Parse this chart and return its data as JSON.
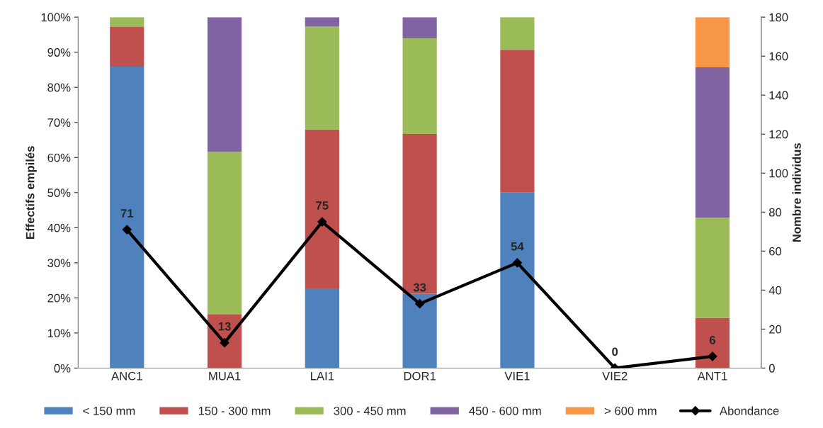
{
  "chart_data": {
    "type": "bar",
    "stacked": true,
    "categories": [
      "ANC1",
      "MUA1",
      "LAI1",
      "DOR1",
      "VIE1",
      "VIE2",
      "ANT1"
    ],
    "series": [
      {
        "name": "< 150 mm",
        "color": "#4f81bd",
        "values": [
          85.9,
          0,
          22.7,
          21.2,
          50,
          null,
          0
        ]
      },
      {
        "name": "150 - 300 mm",
        "color": "#c0504d",
        "values": [
          11.3,
          15.4,
          45.3,
          45.5,
          40.7,
          null,
          14.3
        ]
      },
      {
        "name": "300 - 450 mm",
        "color": "#9bbb59",
        "values": [
          2.8,
          46.2,
          29.3,
          27.3,
          9.3,
          null,
          28.6
        ]
      },
      {
        "name": "450 - 600 mm",
        "color": "#8064a2",
        "values": [
          0,
          38.4,
          2.7,
          6.0,
          0,
          null,
          42.8
        ]
      },
      {
        "name": "> 600 mm",
        "color": "#f79646",
        "values": [
          0,
          0,
          0,
          0,
          0,
          null,
          14.3
        ]
      },
      {
        "name": "Abondance",
        "type": "line",
        "axis": "y2",
        "color": "#000000",
        "marker": "diamond",
        "values": [
          71,
          13,
          75,
          33,
          54,
          0,
          6
        ],
        "value_labels": [
          "71",
          "13",
          "75",
          "33",
          "54",
          "0",
          "6"
        ]
      }
    ],
    "ylabel": "Effectifs empilés",
    "y2label": "Nombre individus",
    "ylim": [
      0,
      100
    ],
    "yticks": [
      {
        "value": 0,
        "label": "0%"
      },
      {
        "value": 10,
        "label": "10%"
      },
      {
        "value": 20,
        "label": "20%"
      },
      {
        "value": 30,
        "label": "30%"
      },
      {
        "value": 40,
        "label": "40%"
      },
      {
        "value": 50,
        "label": "50%"
      },
      {
        "value": 60,
        "label": "60%"
      },
      {
        "value": 70,
        "label": "70%"
      },
      {
        "value": 80,
        "label": "80%"
      },
      {
        "value": 90,
        "label": "90%"
      },
      {
        "value": 100,
        "label": "100%"
      }
    ],
    "y2lim": [
      0,
      180
    ],
    "y2ticks": [
      0,
      20,
      40,
      60,
      80,
      100,
      120,
      140,
      160,
      180
    ],
    "grid": false,
    "legend": "bottom"
  }
}
